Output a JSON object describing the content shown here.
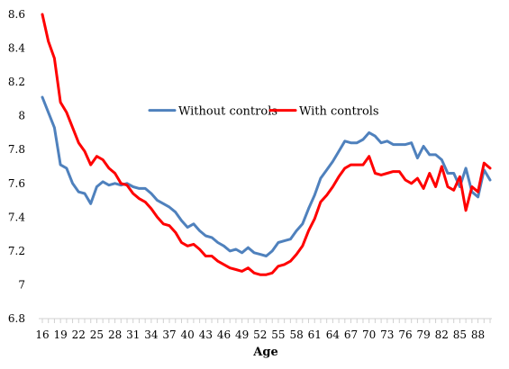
{
  "chart_data": {
    "type": "line",
    "xlabel": "Age",
    "ylabel": "",
    "ylim": [
      6.8,
      8.6
    ],
    "yticks": [
      "6.8",
      "7",
      "7.2",
      "7.4",
      "7.6",
      "7.8",
      "8",
      "8.2",
      "8.4",
      "8.6"
    ],
    "xticks": [
      "16",
      "19",
      "22",
      "25",
      "28",
      "31",
      "34",
      "37",
      "40",
      "43",
      "46",
      "49",
      "52",
      "55",
      "58",
      "61",
      "64",
      "67",
      "70",
      "73",
      "76",
      "79",
      "82",
      "85",
      "88"
    ],
    "x_start": 16,
    "x_end": 90,
    "legend_position": "center",
    "grid": false,
    "series": [
      {
        "name": "Without controls",
        "color": "#4f81bd",
        "values": [
          8.11,
          8.02,
          7.93,
          7.71,
          7.69,
          7.6,
          7.55,
          7.54,
          7.48,
          7.58,
          7.61,
          7.59,
          7.6,
          7.59,
          7.6,
          7.58,
          7.57,
          7.57,
          7.54,
          7.5,
          7.48,
          7.46,
          7.43,
          7.38,
          7.34,
          7.36,
          7.32,
          7.29,
          7.28,
          7.25,
          7.23,
          7.2,
          7.21,
          7.19,
          7.22,
          7.19,
          7.18,
          7.17,
          7.2,
          7.25,
          7.26,
          7.27,
          7.32,
          7.36,
          7.45,
          7.53,
          7.63,
          7.68,
          7.73,
          7.79,
          7.85,
          7.84,
          7.84,
          7.86,
          7.9,
          7.88,
          7.84,
          7.85,
          7.83,
          7.83,
          7.83,
          7.84,
          7.75,
          7.82,
          7.77,
          7.77,
          7.74,
          7.66,
          7.66,
          7.58,
          7.69,
          7.55,
          7.52,
          7.68,
          7.62
        ]
      },
      {
        "name": "With controls",
        "color": "#ff0000",
        "values": [
          8.6,
          8.44,
          8.34,
          8.08,
          8.02,
          7.93,
          7.84,
          7.79,
          7.71,
          7.76,
          7.74,
          7.69,
          7.66,
          7.6,
          7.59,
          7.54,
          7.51,
          7.49,
          7.45,
          7.4,
          7.36,
          7.35,
          7.31,
          7.25,
          7.23,
          7.24,
          7.21,
          7.17,
          7.17,
          7.14,
          7.12,
          7.1,
          7.09,
          7.08,
          7.1,
          7.07,
          7.06,
          7.06,
          7.07,
          7.11,
          7.12,
          7.14,
          7.18,
          7.23,
          7.32,
          7.39,
          7.49,
          7.53,
          7.58,
          7.64,
          7.69,
          7.71,
          7.71,
          7.71,
          7.76,
          7.66,
          7.65,
          7.66,
          7.67,
          7.67,
          7.62,
          7.6,
          7.63,
          7.57,
          7.66,
          7.58,
          7.7,
          7.58,
          7.56,
          7.64,
          7.44,
          7.58,
          7.55,
          7.72,
          7.69
        ]
      }
    ]
  }
}
